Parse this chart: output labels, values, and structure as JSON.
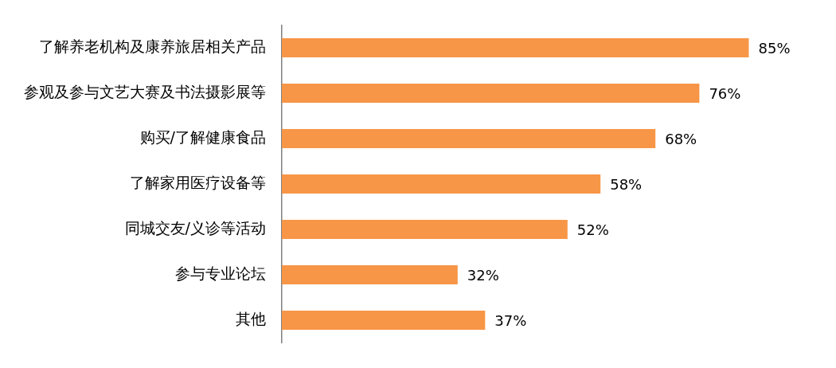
{
  "chart_data": {
    "type": "bar",
    "orientation": "horizontal",
    "categories": [
      "了解养老机构及康养旅居相关产品",
      "参观及参与文艺大赛及书法摄影展等",
      "购买/了解健康食品",
      "了解家用医疗设备等",
      "同城交友/义诊等活动",
      "参与专业论坛",
      "其他"
    ],
    "values": [
      85,
      76,
      68,
      58,
      52,
      32,
      37
    ],
    "value_labels": [
      "85%",
      "76%",
      "68%",
      "58%",
      "52%",
      "32%",
      "37%"
    ],
    "color": "#f79646"
  }
}
